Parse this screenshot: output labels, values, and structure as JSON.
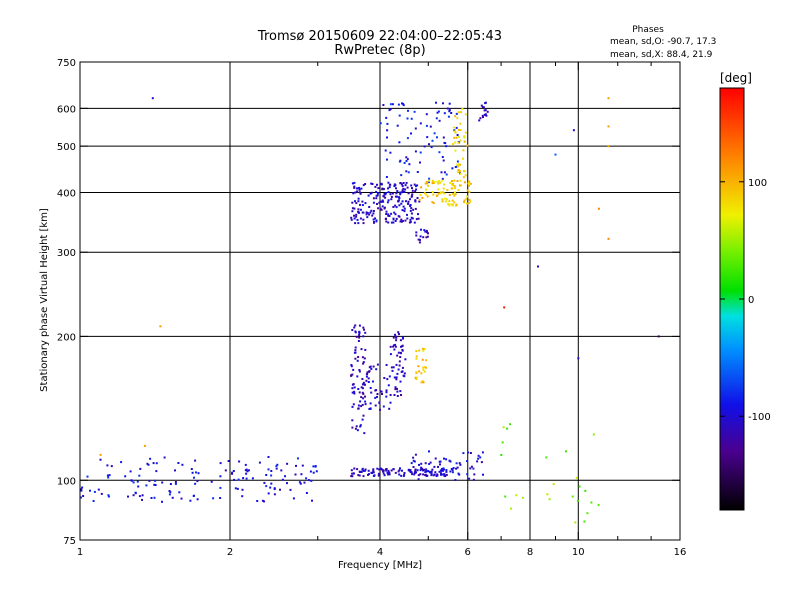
{
  "chart_data": {
    "type": "scatter",
    "title": "Tromsø 20150609 22:04:00–22:05:43",
    "subtitle": "RwPretec (8p)",
    "xlabel": "Frequency [MHz]",
    "ylabel": "Stationary phase Virtual Height [km]",
    "x_scale": "log",
    "y_scale": "log",
    "xlim": [
      1,
      16
    ],
    "ylim": [
      75,
      750
    ],
    "grid": true,
    "x_ticks": [
      {
        "value": 1,
        "label": "1"
      },
      {
        "value": 2,
        "label": "2"
      },
      {
        "value": 4,
        "label": "4"
      },
      {
        "value": 6,
        "label": "6"
      },
      {
        "value": 8,
        "label": "8"
      },
      {
        "value": 10,
        "label": "10"
      },
      {
        "value": 16,
        "label": "16"
      }
    ],
    "x_minor_ticks": [
      3,
      5,
      7,
      9,
      12,
      14
    ],
    "y_ticks": [
      {
        "value": 75,
        "label": "75"
      },
      {
        "value": 100,
        "label": "100"
      },
      {
        "value": 200,
        "label": "200"
      },
      {
        "value": 300,
        "label": "300"
      },
      {
        "value": 400,
        "label": "400"
      },
      {
        "value": 500,
        "label": "500"
      },
      {
        "value": 600,
        "label": "600"
      },
      {
        "value": 750,
        "label": "750"
      }
    ],
    "colorbar": {
      "label": "[deg]",
      "range": [
        -180,
        180
      ],
      "ticks": [
        {
          "value": 100,
          "label": "100"
        },
        {
          "value": 0,
          "label": "0"
        },
        {
          "value": -100,
          "label": "-100"
        }
      ]
    },
    "phase_stats": {
      "heading": "Phases",
      "o_line": "mean, sd,O: -90.7, 17.3",
      "x_line": "mean, sd,X:  88.4, 21.9"
    },
    "trace_colors": {
      "dominant": "#1020e0",
      "secondary": "#00a0ff",
      "x_mode": "#d8f000"
    },
    "point_clusters": [
      {
        "x_range": [
          1.0,
          3.0
        ],
        "y_range": [
          90,
          112
        ],
        "phase": -95,
        "count": 150
      },
      {
        "x_range": [
          3.5,
          5.6
        ],
        "y_range": [
          102,
          106
        ],
        "phase": -105,
        "count": 120
      },
      {
        "x_range": [
          4.6,
          6.5
        ],
        "y_range": [
          100,
          115
        ],
        "phase": -100,
        "count": 60
      },
      {
        "x_range": [
          3.5,
          3.75
        ],
        "y_range": [
          125,
          215
        ],
        "phase": -110,
        "count": 80
      },
      {
        "x_range": [
          3.75,
          4.2
        ],
        "y_range": [
          140,
          175
        ],
        "phase": -105,
        "count": 45
      },
      {
        "x_range": [
          4.2,
          4.5
        ],
        "y_range": [
          150,
          205
        ],
        "phase": -110,
        "count": 55
      },
      {
        "x_range": [
          4.7,
          4.95
        ],
        "y_range": [
          160,
          190
        ],
        "phase": 95,
        "count": 25
      },
      {
        "x_range": [
          3.5,
          4.8
        ],
        "y_range": [
          345,
          420
        ],
        "phase": -105,
        "count": 220
      },
      {
        "x_range": [
          4.0,
          5.8
        ],
        "y_range": [
          420,
          620
        ],
        "phase": -90,
        "count": 90
      },
      {
        "x_range": [
          4.7,
          5.0
        ],
        "y_range": [
          310,
          335
        ],
        "phase": -110,
        "count": 15
      },
      {
        "x_range": [
          4.8,
          6.1
        ],
        "y_range": [
          375,
          425
        ],
        "phase": 90,
        "count": 90
      },
      {
        "x_range": [
          5.6,
          6.0
        ],
        "y_range": [
          430,
          600
        ],
        "phase": 85,
        "count": 40
      },
      {
        "x_range": [
          6.3,
          6.6
        ],
        "y_range": [
          560,
          620
        ],
        "phase": -110,
        "count": 15
      },
      {
        "x_range": [
          7.0,
          11.0
        ],
        "y_range": [
          80,
          135
        ],
        "phase": 40,
        "count": 25
      }
    ],
    "isolated_points": [
      {
        "x": 1.4,
        "y": 630,
        "phase": -100
      },
      {
        "x": 1.45,
        "y": 210,
        "phase": 110
      },
      {
        "x": 1.35,
        "y": 118,
        "phase": 110
      },
      {
        "x": 1.1,
        "y": 113,
        "phase": 110
      },
      {
        "x": 8.3,
        "y": 280,
        "phase": -100
      },
      {
        "x": 9.0,
        "y": 480,
        "phase": -60
      },
      {
        "x": 9.8,
        "y": 540,
        "phase": -110
      },
      {
        "x": 10.0,
        "y": 180,
        "phase": -100
      },
      {
        "x": 11.5,
        "y": 630,
        "phase": 110
      },
      {
        "x": 11.5,
        "y": 550,
        "phase": 110
      },
      {
        "x": 11.5,
        "y": 500,
        "phase": 110
      },
      {
        "x": 11.0,
        "y": 370,
        "phase": 120
      },
      {
        "x": 11.5,
        "y": 320,
        "phase": 120
      },
      {
        "x": 14.5,
        "y": 200,
        "phase": -150
      },
      {
        "x": 7.1,
        "y": 230,
        "phase": 170
      }
    ]
  }
}
